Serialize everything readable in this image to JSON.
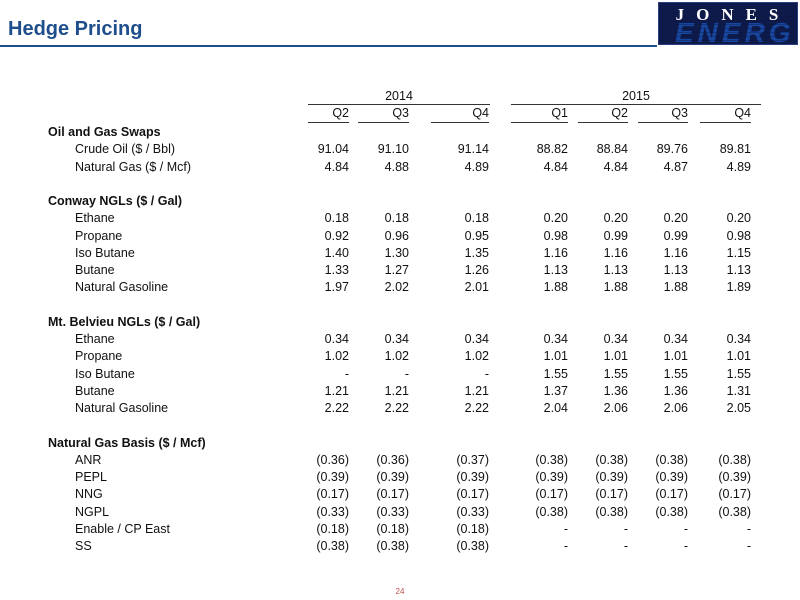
{
  "title": "Hedge Pricing",
  "logo_text": "JONES ENERGY",
  "years": [
    "2014",
    "2015"
  ],
  "quarters": [
    "Q2",
    "Q3",
    "Q4",
    "Q1",
    "Q2",
    "Q3",
    "Q4"
  ],
  "sections": [
    {
      "name": "Oil and Gas Swaps",
      "rows": [
        {
          "label": "Crude Oil ($ / Bbl)",
          "values": [
            "91.04",
            "91.10",
            "91.14",
            "88.82",
            "88.84",
            "89.76",
            "89.81"
          ]
        },
        {
          "label": "Natural Gas ($ / Mcf)",
          "values": [
            "4.84",
            "4.88",
            "4.89",
            "4.84",
            "4.84",
            "4.87",
            "4.89"
          ]
        }
      ]
    },
    {
      "name": "Conway NGLs ($ / Gal)",
      "rows": [
        {
          "label": "Ethane",
          "values": [
            "0.18",
            "0.18",
            "0.18",
            "0.20",
            "0.20",
            "0.20",
            "0.20"
          ]
        },
        {
          "label": "Propane",
          "values": [
            "0.92",
            "0.96",
            "0.95",
            "0.98",
            "0.99",
            "0.99",
            "0.98"
          ]
        },
        {
          "label": "Iso Butane",
          "values": [
            "1.40",
            "1.30",
            "1.35",
            "1.16",
            "1.16",
            "1.16",
            "1.15"
          ]
        },
        {
          "label": "Butane",
          "values": [
            "1.33",
            "1.27",
            "1.26",
            "1.13",
            "1.13",
            "1.13",
            "1.13"
          ]
        },
        {
          "label": "Natural Gasoline",
          "values": [
            "1.97",
            "2.02",
            "2.01",
            "1.88",
            "1.88",
            "1.88",
            "1.89"
          ]
        }
      ]
    },
    {
      "name": "Mt. Belvieu NGLs ($ / Gal)",
      "rows": [
        {
          "label": "Ethane",
          "values": [
            "0.34",
            "0.34",
            "0.34",
            "0.34",
            "0.34",
            "0.34",
            "0.34"
          ]
        },
        {
          "label": "Propane",
          "values": [
            "1.02",
            "1.02",
            "1.02",
            "1.01",
            "1.01",
            "1.01",
            "1.01"
          ]
        },
        {
          "label": "Iso Butane",
          "values": [
            "-",
            "-",
            "-",
            "1.55",
            "1.55",
            "1.55",
            "1.55"
          ]
        },
        {
          "label": "Butane",
          "values": [
            "1.21",
            "1.21",
            "1.21",
            "1.37",
            "1.36",
            "1.36",
            "1.31"
          ]
        },
        {
          "label": "Natural Gasoline",
          "values": [
            "2.22",
            "2.22",
            "2.22",
            "2.04",
            "2.06",
            "2.06",
            "2.05"
          ]
        }
      ]
    },
    {
      "name": "Natural Gas Basis ($ / Mcf)",
      "rows": [
        {
          "label": "ANR",
          "values": [
            "(0.36)",
            "(0.36)",
            "(0.37)",
            "(0.38)",
            "(0.38)",
            "(0.38)",
            "(0.38)"
          ]
        },
        {
          "label": "PEPL",
          "values": [
            "(0.39)",
            "(0.39)",
            "(0.39)",
            "(0.39)",
            "(0.39)",
            "(0.39)",
            "(0.39)"
          ]
        },
        {
          "label": "NNG",
          "values": [
            "(0.17)",
            "(0.17)",
            "(0.17)",
            "(0.17)",
            "(0.17)",
            "(0.17)",
            "(0.17)"
          ]
        },
        {
          "label": "NGPL",
          "values": [
            "(0.33)",
            "(0.33)",
            "(0.33)",
            "(0.38)",
            "(0.38)",
            "(0.38)",
            "(0.38)"
          ]
        },
        {
          "label": "Enable / CP East",
          "values": [
            "(0.18)",
            "(0.18)",
            "(0.18)",
            "-",
            "-",
            "-",
            "-"
          ]
        },
        {
          "label": "SS",
          "values": [
            "(0.38)",
            "(0.38)",
            "(0.38)",
            "-",
            "-",
            "-",
            "-"
          ]
        }
      ]
    }
  ],
  "page_number": "24",
  "colors": {
    "title": "#1f4e8c",
    "logo_bg": "#0d1a4a",
    "page_number": "#c0504d"
  }
}
